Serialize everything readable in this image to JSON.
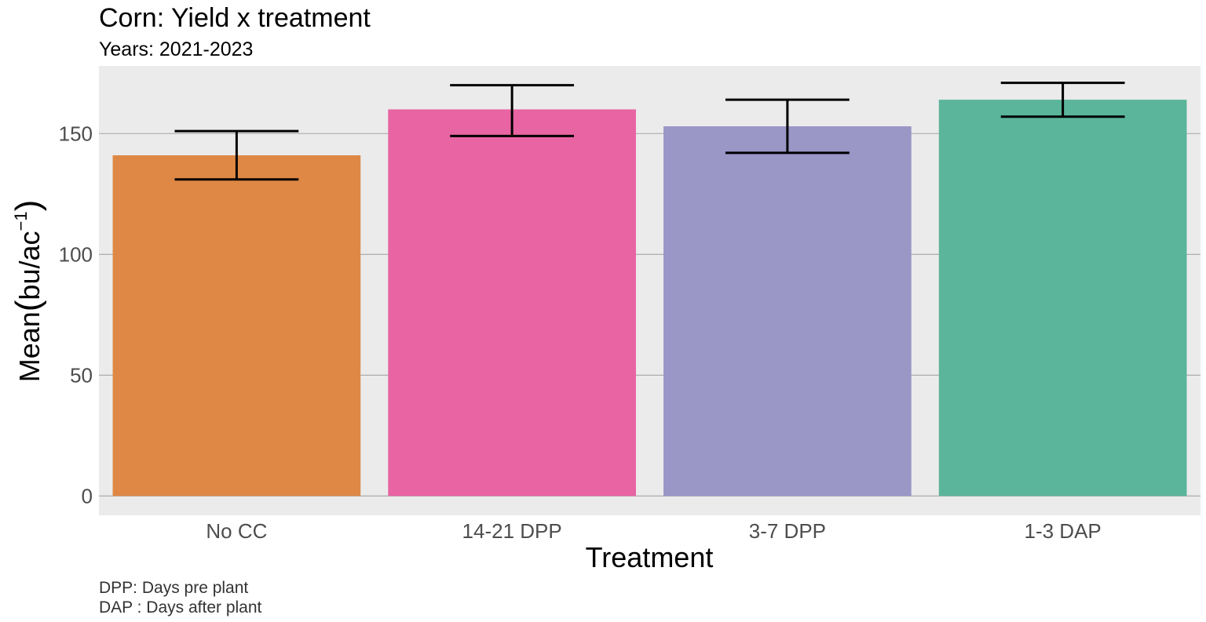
{
  "chart_data": {
    "type": "bar",
    "title": "Corn: Yield x treatment",
    "subtitle": "Years: 2021-2023",
    "xlabel": "Treatment",
    "ylabel": {
      "prefix": "Mean",
      "unit_main": "bu",
      "separator": "/",
      "unit_denominator": "ac",
      "exponent": "−1"
    },
    "categories": [
      "No CC",
      "14-21 DPP",
      "3-7 DPP",
      "1-3 DAP"
    ],
    "values": [
      141,
      160,
      153,
      164
    ],
    "error_low": [
      131,
      149,
      142,
      157
    ],
    "error_high": [
      151,
      170,
      164,
      171
    ],
    "colors": [
      "#DF8845",
      "#E864A3",
      "#9A96C6",
      "#5BB59A"
    ],
    "y_ticks": [
      0,
      50,
      100,
      150
    ],
    "ylim": [
      -8,
      178
    ],
    "grid": "horizontal major lines",
    "panel_background": "#EBEBEB",
    "gridline_color": "#A6A6A6",
    "errorbar_color": "#000000",
    "legend": "none",
    "caption": [
      "DPP: Days pre plant",
      "DAP : Days after plant"
    ]
  }
}
